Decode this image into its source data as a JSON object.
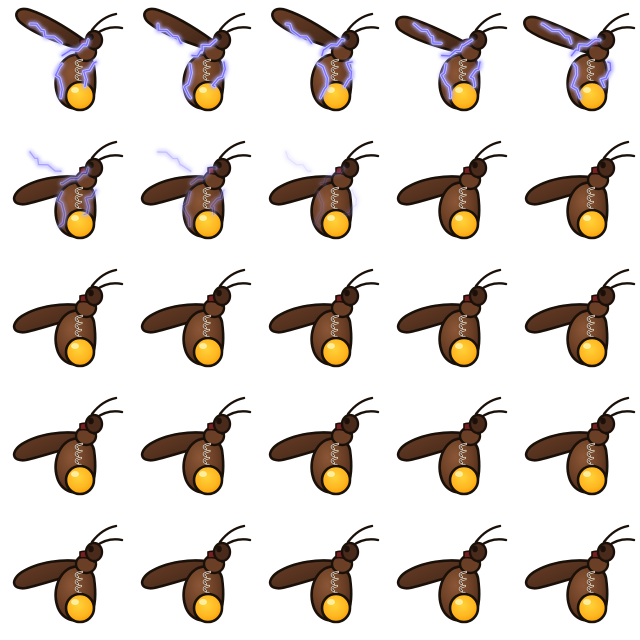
{
  "sheet": {
    "rows": 5,
    "columns": 5,
    "frame_count": 25
  },
  "colors": {
    "background": "#ffffff",
    "outline": "#1a100a",
    "body_dark": "#4a2b1b",
    "body_mid": "#6b3f25",
    "body_light": "#8b5636",
    "wing_dark": "#3f2517",
    "wing_mid": "#6a3e26",
    "glow_core": "#ffd23a",
    "glow_mid": "#ffb51f",
    "glow_edge": "#f29a00",
    "legs": "#f3e7d2",
    "electric": "#7b73ff",
    "electric_glow": "#c9c6ff",
    "collar": "#7a1f1f"
  },
  "frames": [
    {
      "pose": "wing_up",
      "electric": 1
    },
    {
      "pose": "wing_up",
      "electric": 1
    },
    {
      "pose": "wing_up",
      "electric": 1
    },
    {
      "pose": "wing_mid",
      "electric": 1
    },
    {
      "pose": "wing_mid",
      "electric": 1
    },
    {
      "pose": "wing_down",
      "electric": 0.65
    },
    {
      "pose": "wing_down",
      "electric": 0.45
    },
    {
      "pose": "wing_down",
      "electric": 0.2
    },
    {
      "pose": "wing_down",
      "electric": 0
    },
    {
      "pose": "wing_down",
      "electric": 0
    },
    {
      "pose": "wing_down",
      "electric": 0
    },
    {
      "pose": "wing_down",
      "electric": 0
    },
    {
      "pose": "wing_down",
      "electric": 0
    },
    {
      "pose": "wing_down",
      "electric": 0
    },
    {
      "pose": "wing_down",
      "electric": 0
    },
    {
      "pose": "wing_down",
      "electric": 0
    },
    {
      "pose": "wing_down",
      "electric": 0
    },
    {
      "pose": "wing_down",
      "electric": 0
    },
    {
      "pose": "wing_down",
      "electric": 0
    },
    {
      "pose": "wing_down",
      "electric": 0
    },
    {
      "pose": "wing_down",
      "electric": 0
    },
    {
      "pose": "wing_down",
      "electric": 0
    },
    {
      "pose": "wing_down",
      "electric": 0
    },
    {
      "pose": "wing_down",
      "electric": 0
    },
    {
      "pose": "wing_down",
      "electric": 0
    }
  ]
}
